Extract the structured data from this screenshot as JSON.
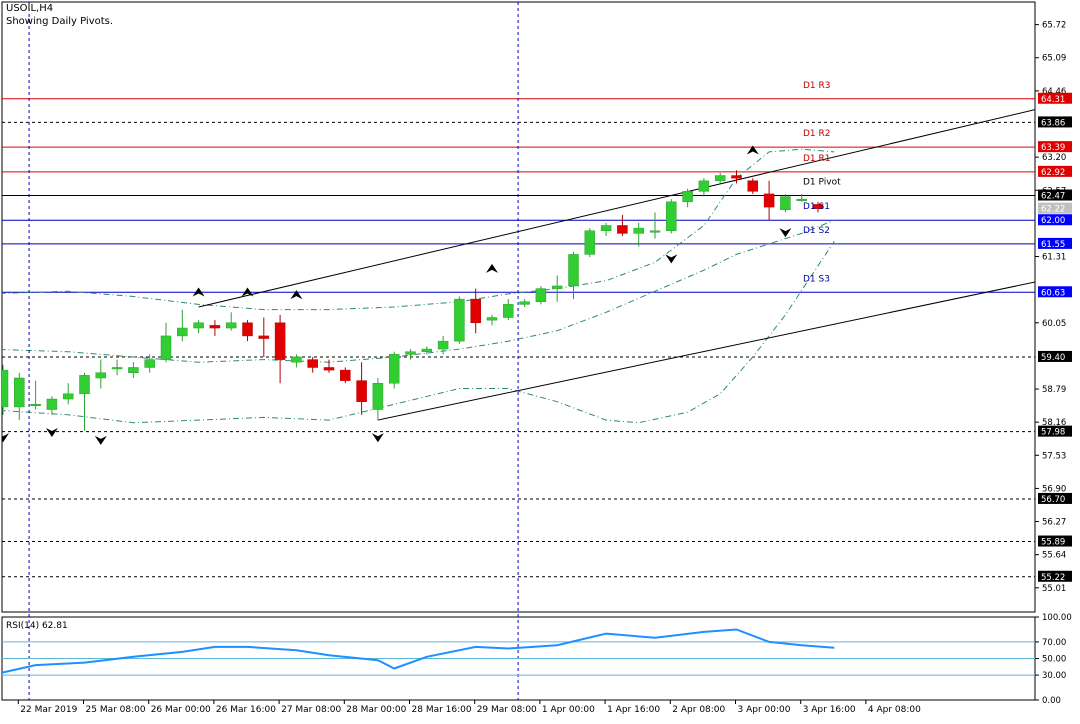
{
  "chart_data": {
    "type": "candlestick",
    "symbol_line": "USOIL,H4",
    "subtitle": "Showing Daily Pivots.",
    "price_axis_ticks": [
      "65.72",
      "65.09",
      "64.46",
      "63.20",
      "62.57",
      "61.31",
      "60.05",
      "58.79",
      "58.16",
      "57.53",
      "56.90",
      "56.27",
      "55.64",
      "55.01"
    ],
    "price_range": [
      54.55,
      66.15
    ],
    "pivot_levels": [
      {
        "label": "D1 R3",
        "value": 64.31,
        "tag": "64.31",
        "color": "#dc0000"
      },
      {
        "label": "D1 R2",
        "value": 63.39,
        "tag": "63.39",
        "color": "#dc0000"
      },
      {
        "label": "D1 R1",
        "value": 62.92,
        "tag": "62.92",
        "color": "#dc0000"
      },
      {
        "label": "D1 Pivot",
        "value": 62.47,
        "tag": "62.47",
        "color": "#000000"
      },
      {
        "label": "D1 S1",
        "value": 62.0,
        "tag": "62.00",
        "color": "#0000c0"
      },
      {
        "label": "D1 S2",
        "value": 61.55,
        "tag": "61.55",
        "color": "#0000c0"
      },
      {
        "label": "D1 S3",
        "value": 60.63,
        "tag": "60.63",
        "color": "#0000c0"
      }
    ],
    "dashed_levels": [
      {
        "value": 63.86,
        "tag": "63.86"
      },
      {
        "value": 59.4,
        "tag": "59.40"
      },
      {
        "value": 57.98,
        "tag": "57.98"
      },
      {
        "value": 56.7,
        "tag": "56.70"
      },
      {
        "value": 55.89,
        "tag": "55.89"
      },
      {
        "value": 55.22,
        "tag": "55.22"
      }
    ],
    "current_price_tag": "62.22",
    "current_price": 62.22,
    "candles": [
      [
        58.45,
        59.25,
        58.3,
        59.15
      ],
      [
        58.45,
        59.1,
        58.2,
        59.0
      ],
      [
        58.5,
        58.95,
        58.4,
        58.5
      ],
      [
        58.4,
        58.65,
        58.3,
        58.6
      ],
      [
        58.6,
        58.9,
        58.5,
        58.7
      ],
      [
        58.7,
        59.1,
        58.0,
        59.05
      ],
      [
        59.0,
        59.35,
        58.8,
        59.1
      ],
      [
        59.2,
        59.35,
        59.05,
        59.2
      ],
      [
        59.1,
        59.3,
        59.0,
        59.2
      ],
      [
        59.2,
        59.45,
        59.1,
        59.35
      ],
      [
        59.35,
        60.05,
        59.3,
        59.8
      ],
      [
        59.8,
        60.3,
        59.7,
        59.95
      ],
      [
        59.95,
        60.1,
        59.85,
        60.05
      ],
      [
        60.0,
        60.1,
        59.8,
        59.95
      ],
      [
        59.95,
        60.25,
        59.9,
        60.05
      ],
      [
        60.05,
        60.1,
        59.7,
        59.8
      ],
      [
        59.8,
        60.15,
        59.4,
        59.75
      ],
      [
        60.05,
        60.2,
        58.9,
        59.35
      ],
      [
        59.3,
        59.45,
        59.2,
        59.4
      ],
      [
        59.35,
        59.4,
        59.1,
        59.2
      ],
      [
        59.2,
        59.35,
        59.1,
        59.15
      ],
      [
        59.15,
        59.2,
        58.9,
        58.95
      ],
      [
        58.95,
        59.3,
        58.3,
        58.55
      ],
      [
        58.4,
        59.0,
        58.2,
        58.9
      ],
      [
        58.9,
        59.5,
        58.8,
        59.45
      ],
      [
        59.45,
        59.55,
        59.35,
        59.5
      ],
      [
        59.5,
        59.6,
        59.45,
        59.55
      ],
      [
        59.55,
        59.8,
        59.45,
        59.7
      ],
      [
        59.7,
        60.55,
        59.65,
        60.5
      ],
      [
        60.5,
        60.7,
        59.85,
        60.05
      ],
      [
        60.1,
        60.2,
        60.0,
        60.15
      ],
      [
        60.15,
        60.5,
        60.1,
        60.4
      ],
      [
        60.4,
        60.5,
        60.35,
        60.45
      ],
      [
        60.45,
        60.75,
        60.4,
        60.7
      ],
      [
        60.7,
        60.95,
        60.45,
        60.75
      ],
      [
        60.75,
        61.4,
        60.5,
        61.35
      ],
      [
        61.35,
        61.85,
        61.3,
        61.8
      ],
      [
        61.8,
        61.95,
        61.7,
        61.9
      ],
      [
        61.9,
        62.1,
        61.7,
        61.75
      ],
      [
        61.75,
        61.95,
        61.5,
        61.85
      ],
      [
        61.8,
        62.15,
        61.65,
        61.8
      ],
      [
        61.8,
        62.4,
        61.75,
        62.35
      ],
      [
        62.35,
        62.6,
        62.25,
        62.55
      ],
      [
        62.55,
        62.8,
        62.45,
        62.75
      ],
      [
        62.75,
        62.9,
        62.7,
        62.85
      ],
      [
        62.85,
        62.95,
        62.7,
        62.8
      ],
      [
        62.75,
        62.8,
        62.5,
        62.55
      ],
      [
        62.5,
        62.75,
        62.0,
        62.25
      ],
      [
        62.2,
        62.5,
        62.15,
        62.45
      ],
      [
        62.4,
        62.5,
        62.35,
        62.4
      ],
      [
        62.3,
        62.35,
        62.15,
        62.22
      ]
    ],
    "time_labels": [
      {
        "label": "22 Mar 2019",
        "index": 1
      },
      {
        "label": "25 Mar 08:00",
        "index": 5
      },
      {
        "label": "26 Mar 00:00",
        "index": 9
      },
      {
        "label": "26 Mar 16:00",
        "index": 13
      },
      {
        "label": "27 Mar 08:00",
        "index": 17
      },
      {
        "label": "28 Mar 00:00",
        "index": 21
      },
      {
        "label": "28 Mar 16:00",
        "index": 25
      },
      {
        "label": "29 Mar 08:00",
        "index": 29
      },
      {
        "label": "1 Apr 00:00",
        "index": 33
      },
      {
        "label": "1 Apr 16:00",
        "index": 37
      },
      {
        "label": "2 Apr 08:00",
        "index": 41
      },
      {
        "label": "3 Apr 00:00",
        "index": 45
      },
      {
        "label": "3 Apr 16:00",
        "index": 49
      },
      {
        "label": "4 Apr 08:00",
        "index": 53
      }
    ],
    "day_separators": [
      1.6,
      31.6
    ],
    "trend_lines": [
      {
        "from": [
          12,
          60.35
        ],
        "to": [
          66,
          64.3
        ]
      },
      {
        "from": [
          23,
          58.2
        ],
        "to": [
          66,
          61.0
        ]
      }
    ],
    "envelope_upper": [
      [
        -1,
        60.6
      ],
      [
        4,
        60.65
      ],
      [
        8,
        60.55
      ],
      [
        12,
        60.4
      ],
      [
        16,
        60.3
      ],
      [
        20,
        60.3
      ],
      [
        24,
        60.35
      ],
      [
        28,
        60.45
      ],
      [
        31,
        60.6
      ],
      [
        34,
        60.7
      ],
      [
        37,
        60.85
      ],
      [
        40,
        61.2
      ],
      [
        43,
        61.9
      ],
      [
        45,
        62.8
      ],
      [
        47,
        63.3
      ],
      [
        49,
        63.35
      ],
      [
        51,
        63.3
      ]
    ],
    "envelope_middle": [
      [
        -1,
        59.55
      ],
      [
        4,
        59.5
      ],
      [
        8,
        59.4
      ],
      [
        12,
        59.3
      ],
      [
        16,
        59.35
      ],
      [
        20,
        59.3
      ],
      [
        24,
        59.4
      ],
      [
        28,
        59.55
      ],
      [
        31,
        59.7
      ],
      [
        34,
        59.9
      ],
      [
        37,
        60.25
      ],
      [
        40,
        60.65
      ],
      [
        43,
        61.05
      ],
      [
        45,
        61.35
      ],
      [
        47,
        61.55
      ],
      [
        49,
        61.75
      ],
      [
        51,
        62.0
      ]
    ],
    "envelope_lower": [
      [
        -1,
        58.4
      ],
      [
        4,
        58.3
      ],
      [
        8,
        58.15
      ],
      [
        12,
        58.2
      ],
      [
        16,
        58.25
      ],
      [
        20,
        58.2
      ],
      [
        24,
        58.5
      ],
      [
        28,
        58.8
      ],
      [
        31,
        58.8
      ],
      [
        34,
        58.55
      ],
      [
        37,
        58.2
      ],
      [
        39,
        58.15
      ],
      [
        42,
        58.35
      ],
      [
        44,
        58.7
      ],
      [
        46,
        59.4
      ],
      [
        48,
        60.2
      ],
      [
        51,
        61.6
      ]
    ],
    "fractals_up": [
      [
        12,
        60.55
      ],
      [
        15,
        60.55
      ],
      [
        18,
        60.5
      ],
      [
        30,
        61.0
      ],
      [
        46,
        63.25
      ]
    ],
    "fractals_down": [
      [
        0,
        57.95
      ],
      [
        3,
        58.05
      ],
      [
        6,
        57.9
      ],
      [
        23,
        57.95
      ],
      [
        41,
        61.35
      ],
      [
        48,
        61.85
      ]
    ],
    "rsi": {
      "label": "RSI(14) 62.81",
      "ticks": [
        "100.00",
        "70.00",
        "50.00",
        "30.00",
        "0.00"
      ],
      "levels": [
        70,
        50,
        30
      ],
      "values": [
        [
          -1,
          33
        ],
        [
          2,
          42
        ],
        [
          5,
          45
        ],
        [
          8,
          52
        ],
        [
          11,
          58
        ],
        [
          13,
          64
        ],
        [
          15,
          64
        ],
        [
          18,
          60
        ],
        [
          20,
          54
        ],
        [
          23,
          48
        ],
        [
          24,
          38
        ],
        [
          26,
          52
        ],
        [
          29,
          64
        ],
        [
          31,
          62
        ],
        [
          34,
          66
        ],
        [
          37,
          80
        ],
        [
          40,
          75
        ],
        [
          43,
          82
        ],
        [
          45,
          85
        ],
        [
          47,
          70
        ],
        [
          49,
          66
        ],
        [
          51,
          63
        ]
      ]
    }
  }
}
